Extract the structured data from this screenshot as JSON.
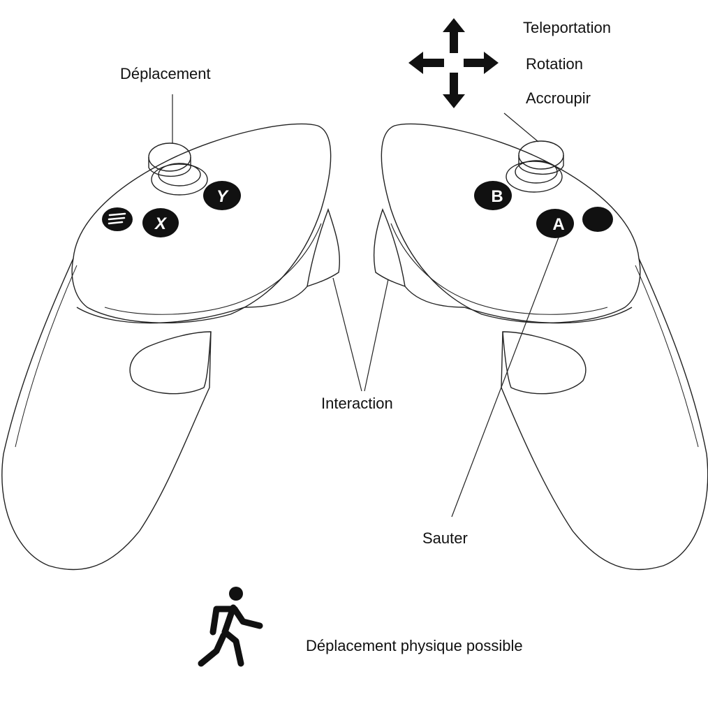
{
  "labels": {
    "thumbstick_left": "Déplacement",
    "dpad_up": "Teleportation",
    "dpad_side": "Rotation",
    "dpad_down": "Accroupir",
    "triggers": "Interaction",
    "button_a": "Sauter",
    "walking": "Déplacement physique possible"
  },
  "buttons": {
    "left": [
      "X",
      "Y"
    ],
    "right": [
      "A",
      "B"
    ]
  },
  "icons": [
    "four-way-arrow-icon",
    "walking-person-icon",
    "menu-icon"
  ],
  "colors": {
    "line": "#222222",
    "button": "#111111",
    "button_text": "#ffffff"
  }
}
